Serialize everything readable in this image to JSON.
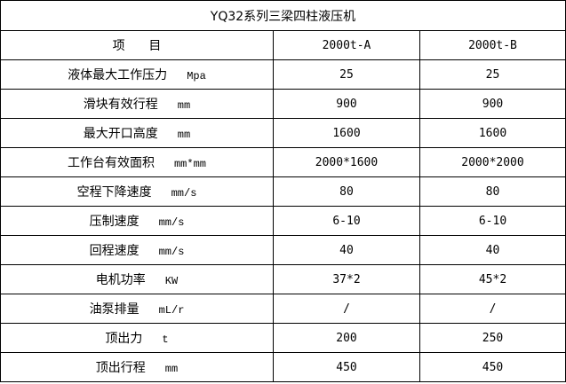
{
  "title": "YQ32系列三梁四柱液压机",
  "header": {
    "item": "项      目",
    "col_a": "2000t-A",
    "col_b": "2000t-B"
  },
  "rows": [
    {
      "name": "液体最大工作压力",
      "unit": "Mpa",
      "a": "25",
      "b": "25"
    },
    {
      "name": "滑块有效行程",
      "unit": "mm",
      "a": "900",
      "b": "900"
    },
    {
      "name": "最大开口高度",
      "unit": "mm",
      "a": "1600",
      "b": "1600"
    },
    {
      "name": "工作台有效面积",
      "unit": "mm*mm",
      "a": "2000*1600",
      "b": "2000*2000"
    },
    {
      "name": "空程下降速度",
      "unit": "mm/s",
      "a": "80",
      "b": "80"
    },
    {
      "name": "压制速度",
      "unit": "mm/s",
      "a": "6-10",
      "b": "6-10"
    },
    {
      "name": "回程速度",
      "unit": "mm/s",
      "a": "40",
      "b": "40"
    },
    {
      "name": "电机功率",
      "unit": "KW",
      "a": "37*2",
      "b": "45*2"
    },
    {
      "name": "油泵排量",
      "unit": "mL/r",
      "a": "/",
      "b": "/"
    },
    {
      "name": "顶出力",
      "unit": "t",
      "a": "200",
      "b": "250"
    },
    {
      "name": "顶出行程",
      "unit": "mm",
      "a": "450",
      "b": "450"
    }
  ]
}
